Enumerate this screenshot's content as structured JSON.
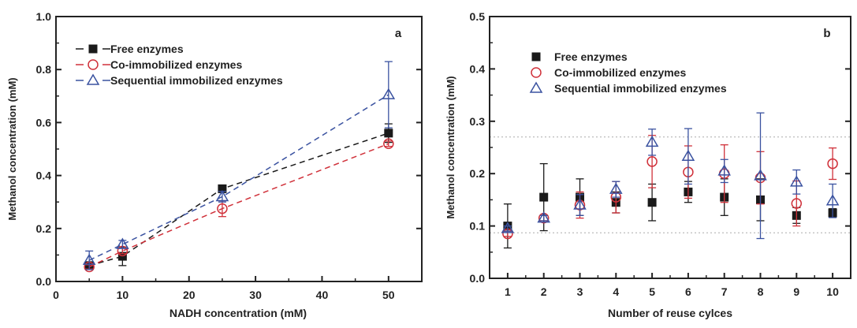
{
  "chart_data": [
    {
      "type": "scatter",
      "panel_label": "a",
      "xlabel": "NADH concentration (mM)",
      "ylabel": "Methanol concentration (mM)",
      "xlim": [
        0,
        55
      ],
      "ylim": [
        0,
        1.0
      ],
      "xticks": [
        0,
        10,
        20,
        30,
        40,
        50
      ],
      "xtick_labels": [
        "0",
        "10",
        "20",
        "30",
        "40",
        "50"
      ],
      "yticks": [
        0,
        0.2,
        0.4,
        0.6,
        0.8,
        1.0
      ],
      "ytick_labels": [
        "0.0",
        "0.2",
        "0.4",
        "0.6",
        "0.8",
        "1.0"
      ],
      "grid": false,
      "legend_placement": "top-left",
      "x": [
        5,
        10,
        25,
        50
      ],
      "series": [
        {
          "name": "Free enzymes",
          "color": "#1a1a1a",
          "marker": "filled-square",
          "line": "dashed",
          "values": [
            0.06,
            0.095,
            0.35,
            0.56
          ],
          "errors": [
            0.01,
            0.035,
            0.01,
            0.035
          ]
        },
        {
          "name": "Co-immobilized enzymes",
          "color": "#d0313a",
          "marker": "open-circle",
          "line": "dashed",
          "values": [
            0.055,
            0.115,
            0.275,
            0.52
          ],
          "errors": [
            0.008,
            0.01,
            0.03,
            0.01
          ]
        },
        {
          "name": "Sequential immobilized enzymes",
          "color": "#3a52a0",
          "marker": "open-triangle",
          "line": "dashed",
          "values": [
            0.08,
            0.14,
            0.32,
            0.705
          ],
          "errors": [
            0.035,
            0.015,
            0.02,
            0.125
          ]
        }
      ]
    },
    {
      "type": "scatter",
      "panel_label": "b",
      "xlabel": "Number of reuse cylces",
      "ylabel": "Methanol concentration (mM)",
      "xlim": [
        0.5,
        10.5
      ],
      "ylim": [
        0,
        0.5
      ],
      "xticks": [
        1,
        2,
        3,
        4,
        5,
        6,
        7,
        8,
        9,
        10
      ],
      "xtick_labels": [
        "1",
        "2",
        "3",
        "4",
        "5",
        "6",
        "7",
        "8",
        "9",
        "10"
      ],
      "yticks": [
        0,
        0.1,
        0.2,
        0.3,
        0.4,
        0.5
      ],
      "ytick_labels": [
        "0.0",
        "0.1",
        "0.2",
        "0.3",
        "0.4",
        "0.5"
      ],
      "grid": false,
      "reference_lines": [
        0.27,
        0.087
      ],
      "legend_placement": "top-left",
      "x": [
        1,
        2,
        3,
        4,
        5,
        6,
        7,
        8,
        9,
        10
      ],
      "series": [
        {
          "name": "Free enzymes",
          "color": "#1a1a1a",
          "marker": "filled-square",
          "values": [
            0.1,
            0.155,
            0.155,
            0.145,
            0.145,
            0.165,
            0.155,
            0.15,
            0.12,
            0.125
          ],
          "errors": [
            0.042,
            0.064,
            0.035,
            0.02,
            0.035,
            0.02,
            0.035,
            0.04,
            0.015,
            0.008
          ]
        },
        {
          "name": "Co-immobilized enzymes",
          "color": "#d0313a",
          "marker": "open-circle",
          "values": [
            0.085,
            0.115,
            0.14,
            0.155,
            0.223,
            0.203,
            0.2,
            0.192,
            0.143,
            0.219
          ],
          "errors": [
            0.005,
            0.005,
            0.025,
            0.03,
            0.05,
            0.05,
            0.055,
            0.05,
            0.043,
            0.03
          ]
        },
        {
          "name": "Sequential immobilized enzymes",
          "color": "#3a52a0",
          "marker": "open-triangle",
          "values": [
            0.095,
            0.115,
            0.14,
            0.17,
            0.26,
            0.233,
            0.205,
            0.196,
            0.184,
            0.148
          ],
          "errors": [
            0.005,
            0.005,
            0.02,
            0.015,
            0.025,
            0.053,
            0.022,
            0.12,
            0.023,
            0.032
          ]
        }
      ]
    }
  ]
}
